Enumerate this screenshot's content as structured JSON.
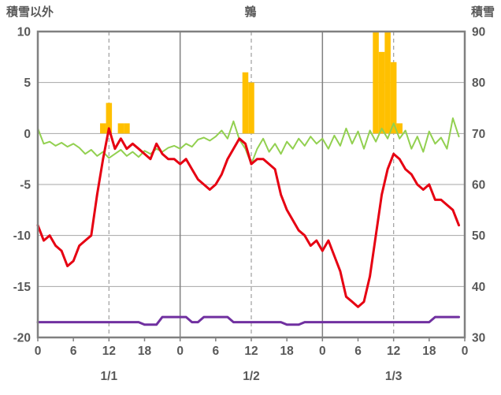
{
  "header": {
    "left_axis_title": "積雪以外",
    "chart_title": "鶉",
    "right_axis_title": "積雪"
  },
  "chart_data": {
    "type": "line+bar",
    "title": "鶉",
    "x_hours": 72,
    "x_ticks": [
      {
        "hour": 0,
        "label": "0"
      },
      {
        "hour": 6,
        "label": "6"
      },
      {
        "hour": 12,
        "label": "12"
      },
      {
        "hour": 18,
        "label": "18"
      },
      {
        "hour": 24,
        "label": "0"
      },
      {
        "hour": 30,
        "label": "6"
      },
      {
        "hour": 36,
        "label": "12"
      },
      {
        "hour": 42,
        "label": "18"
      },
      {
        "hour": 48,
        "label": "0"
      },
      {
        "hour": 54,
        "label": "6"
      },
      {
        "hour": 60,
        "label": "12"
      },
      {
        "hour": 66,
        "label": "18"
      },
      {
        "hour": 72,
        "label": "0"
      }
    ],
    "date_labels": [
      {
        "hour": 12,
        "label": "1/1"
      },
      {
        "hour": 36,
        "label": "1/2"
      },
      {
        "hour": 60,
        "label": "1/3"
      }
    ],
    "x_gridlines": {
      "solid": [
        24,
        48
      ],
      "dashed": [
        12,
        36,
        60
      ]
    },
    "left_axis": {
      "title": "積雪以外",
      "max": 10,
      "min": -20,
      "ticks": [
        10,
        5,
        0,
        -5,
        -10,
        -15,
        -20
      ]
    },
    "right_axis": {
      "title": "積雪",
      "max": 90,
      "min": 30,
      "ticks": [
        90,
        80,
        70,
        60,
        50,
        40,
        30
      ]
    },
    "colors": {
      "grid": "#a6a6a6",
      "border": "#808080",
      "text": "#595959",
      "background": "#ffffff"
    },
    "series": [
      {
        "name": "precipitation-bars",
        "type": "bar",
        "axis": "left",
        "color": "#ffc000",
        "values": [
          0,
          0,
          0,
          0,
          0,
          0,
          0,
          0,
          0,
          0,
          0,
          1,
          3,
          0,
          1,
          1,
          0,
          0,
          0,
          0,
          0,
          0,
          0,
          0,
          0,
          0,
          0,
          0,
          0,
          0,
          0,
          0,
          0,
          0,
          0,
          6,
          5,
          0,
          0,
          0,
          0,
          0,
          0,
          0,
          0,
          0,
          0,
          0,
          0,
          0,
          0,
          0,
          0,
          0,
          0,
          0,
          0,
          10,
          8,
          10,
          7,
          1,
          0,
          0,
          0,
          0,
          0,
          0,
          0,
          0,
          0,
          0
        ]
      },
      {
        "name": "green-line",
        "type": "line",
        "axis": "left",
        "color": "#92d050",
        "width": 2,
        "values": [
          0.5,
          -1,
          -0.8,
          -1.2,
          -0.9,
          -1.3,
          -1,
          -1.4,
          -2,
          -1.6,
          -2.2,
          -1.8,
          -2.4,
          -2,
          -1.6,
          -2.2,
          -1.8,
          -2.3,
          -1.7,
          -2,
          -1.5,
          -1.8,
          -1.4,
          -1.2,
          -1.5,
          -1,
          -1.3,
          -0.6,
          -0.4,
          -0.7,
          -0.3,
          0.3,
          -0.5,
          1.2,
          -0.6,
          -1.5,
          -3,
          -1.5,
          -0.5,
          -1.8,
          -1,
          -2,
          -0.8,
          -1.5,
          -0.5,
          -1.2,
          -0.3,
          -1,
          -0.5,
          -1.5,
          -0.2,
          -1.2,
          0.5,
          -1,
          0.2,
          -1.5,
          0.3,
          -0.8,
          0.5,
          -0.5,
          1,
          -0.5,
          0.3,
          -1.5,
          -0.3,
          -1.8,
          0.2,
          -1,
          -0.4,
          -1.5,
          1.5,
          -0.3
        ]
      },
      {
        "name": "temperature-line",
        "type": "line",
        "axis": "left",
        "color": "#e60012",
        "width": 3,
        "values": [
          -9,
          -10.5,
          -10,
          -11,
          -11.5,
          -13,
          -12.5,
          -11,
          -10.5,
          -10,
          -6,
          -2.5,
          0.5,
          -1.5,
          -0.5,
          -1.5,
          -1,
          -1.5,
          -2,
          -2.5,
          -1,
          -2,
          -2.5,
          -2.5,
          -3,
          -2.5,
          -3.5,
          -4.5,
          -5,
          -5.5,
          -5,
          -4,
          -2.5,
          -1.5,
          -0.5,
          -1,
          -3,
          -2.5,
          -2.5,
          -3,
          -3.5,
          -6,
          -7.5,
          -8.5,
          -9.5,
          -10,
          -11,
          -10.5,
          -11.5,
          -10.5,
          -12,
          -13.5,
          -16,
          -16.5,
          -17,
          -16.5,
          -14,
          -10,
          -6,
          -3.5,
          -2,
          -2.5,
          -3.5,
          -4,
          -5,
          -5.5,
          -5,
          -6.5,
          -6.5,
          -7,
          -7.5,
          -9
        ]
      },
      {
        "name": "snow-depth-line",
        "type": "line",
        "axis": "right",
        "color": "#7030a0",
        "width": 3,
        "values": [
          33,
          33,
          33,
          33,
          33,
          33,
          33,
          33,
          33,
          33,
          33,
          33,
          33,
          33,
          33,
          33,
          33,
          33,
          32.5,
          32.5,
          32.5,
          34,
          34,
          34,
          34,
          34,
          33,
          33,
          34,
          34,
          34,
          34,
          34,
          33,
          33,
          33,
          33,
          33,
          33,
          33,
          33,
          33,
          32.5,
          32.5,
          32.5,
          33,
          33,
          33,
          33,
          33,
          33,
          33,
          33,
          33,
          33,
          33,
          33,
          33,
          33,
          33,
          33,
          33,
          33,
          33,
          33,
          33,
          33,
          34,
          34,
          34,
          34,
          34
        ]
      }
    ]
  }
}
